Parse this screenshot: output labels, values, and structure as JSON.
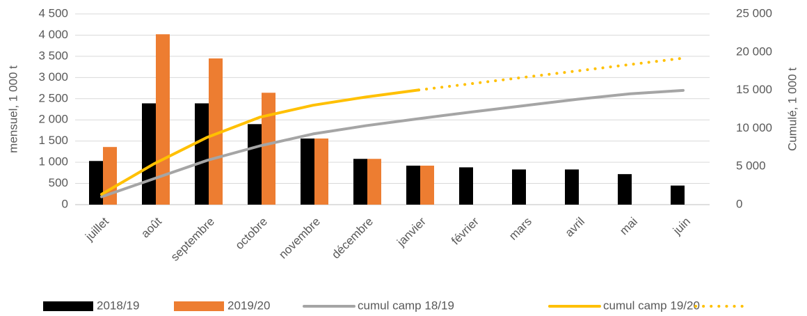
{
  "chart_data": {
    "type": "bar",
    "y_label": "mensuel, 1 000 t",
    "y2_label": "Cumulé, 1 000 t",
    "categories": [
      "juillet",
      "août",
      "septembre",
      "octobre",
      "novembre",
      "décembre",
      "janvier",
      "février",
      "mars",
      "avril",
      "mai",
      "juin"
    ],
    "series": [
      {
        "name": "2018/19",
        "type": "bar",
        "color": "#000000",
        "values": [
          1030,
          2390,
          2390,
          1900,
          1560,
          1080,
          920,
          880,
          830,
          830,
          720,
          450
        ]
      },
      {
        "name": "2019/20",
        "type": "bar",
        "color": "#ed7d31",
        "values": [
          1360,
          4020,
          3450,
          2640,
          1560,
          1080,
          920,
          null,
          null,
          null,
          null,
          null
        ]
      },
      {
        "name": "cumul camp 18/19",
        "type": "line",
        "axis": "y2",
        "color": "#a5a5a5",
        "style": "solid",
        "values": [
          1030,
          3420,
          5810,
          7710,
          9270,
          10350,
          11270,
          12150,
          12980,
          13810,
          14530,
          14980
        ]
      },
      {
        "name": "cumul camp 19/20",
        "type": "line",
        "axis": "y2",
        "color": "#ffc000",
        "style": "solid",
        "values": [
          1360,
          5380,
          8830,
          11470,
          13030,
          14110,
          15030,
          null,
          null,
          null,
          null,
          null
        ]
      },
      {
        "type": "line",
        "axis": "y2",
        "color": "#ffc000",
        "style": "dotted",
        "values": [
          null,
          null,
          null,
          null,
          null,
          null,
          15030,
          15860,
          16700,
          17530,
          18370,
          19200
        ]
      }
    ],
    "ylim": [
      0,
      4500
    ],
    "yticks": [
      0,
      500,
      {
        "value": 1000,
        "label": "1 000"
      },
      {
        "value": 1500,
        "label": "1 500"
      },
      {
        "value": 2000,
        "label": "2 000"
      },
      {
        "value": 2500,
        "label": "2 500"
      },
      {
        "value": 3000,
        "label": "3 000"
      },
      {
        "value": 3500,
        "label": "3 500"
      },
      {
        "value": 4000,
        "label": "4 000"
      },
      {
        "value": 4500,
        "label": "4 500"
      }
    ],
    "y2lim": [
      0,
      25000
    ],
    "y2ticks": [
      0,
      {
        "value": 5000,
        "label": "5 000"
      },
      {
        "value": 10000,
        "label": "10 000"
      },
      {
        "value": 15000,
        "label": "15 000"
      },
      {
        "value": 20000,
        "label": "20 000"
      },
      {
        "value": 25000,
        "label": "25 000"
      }
    ],
    "grid": true,
    "legend": "bottom"
  }
}
